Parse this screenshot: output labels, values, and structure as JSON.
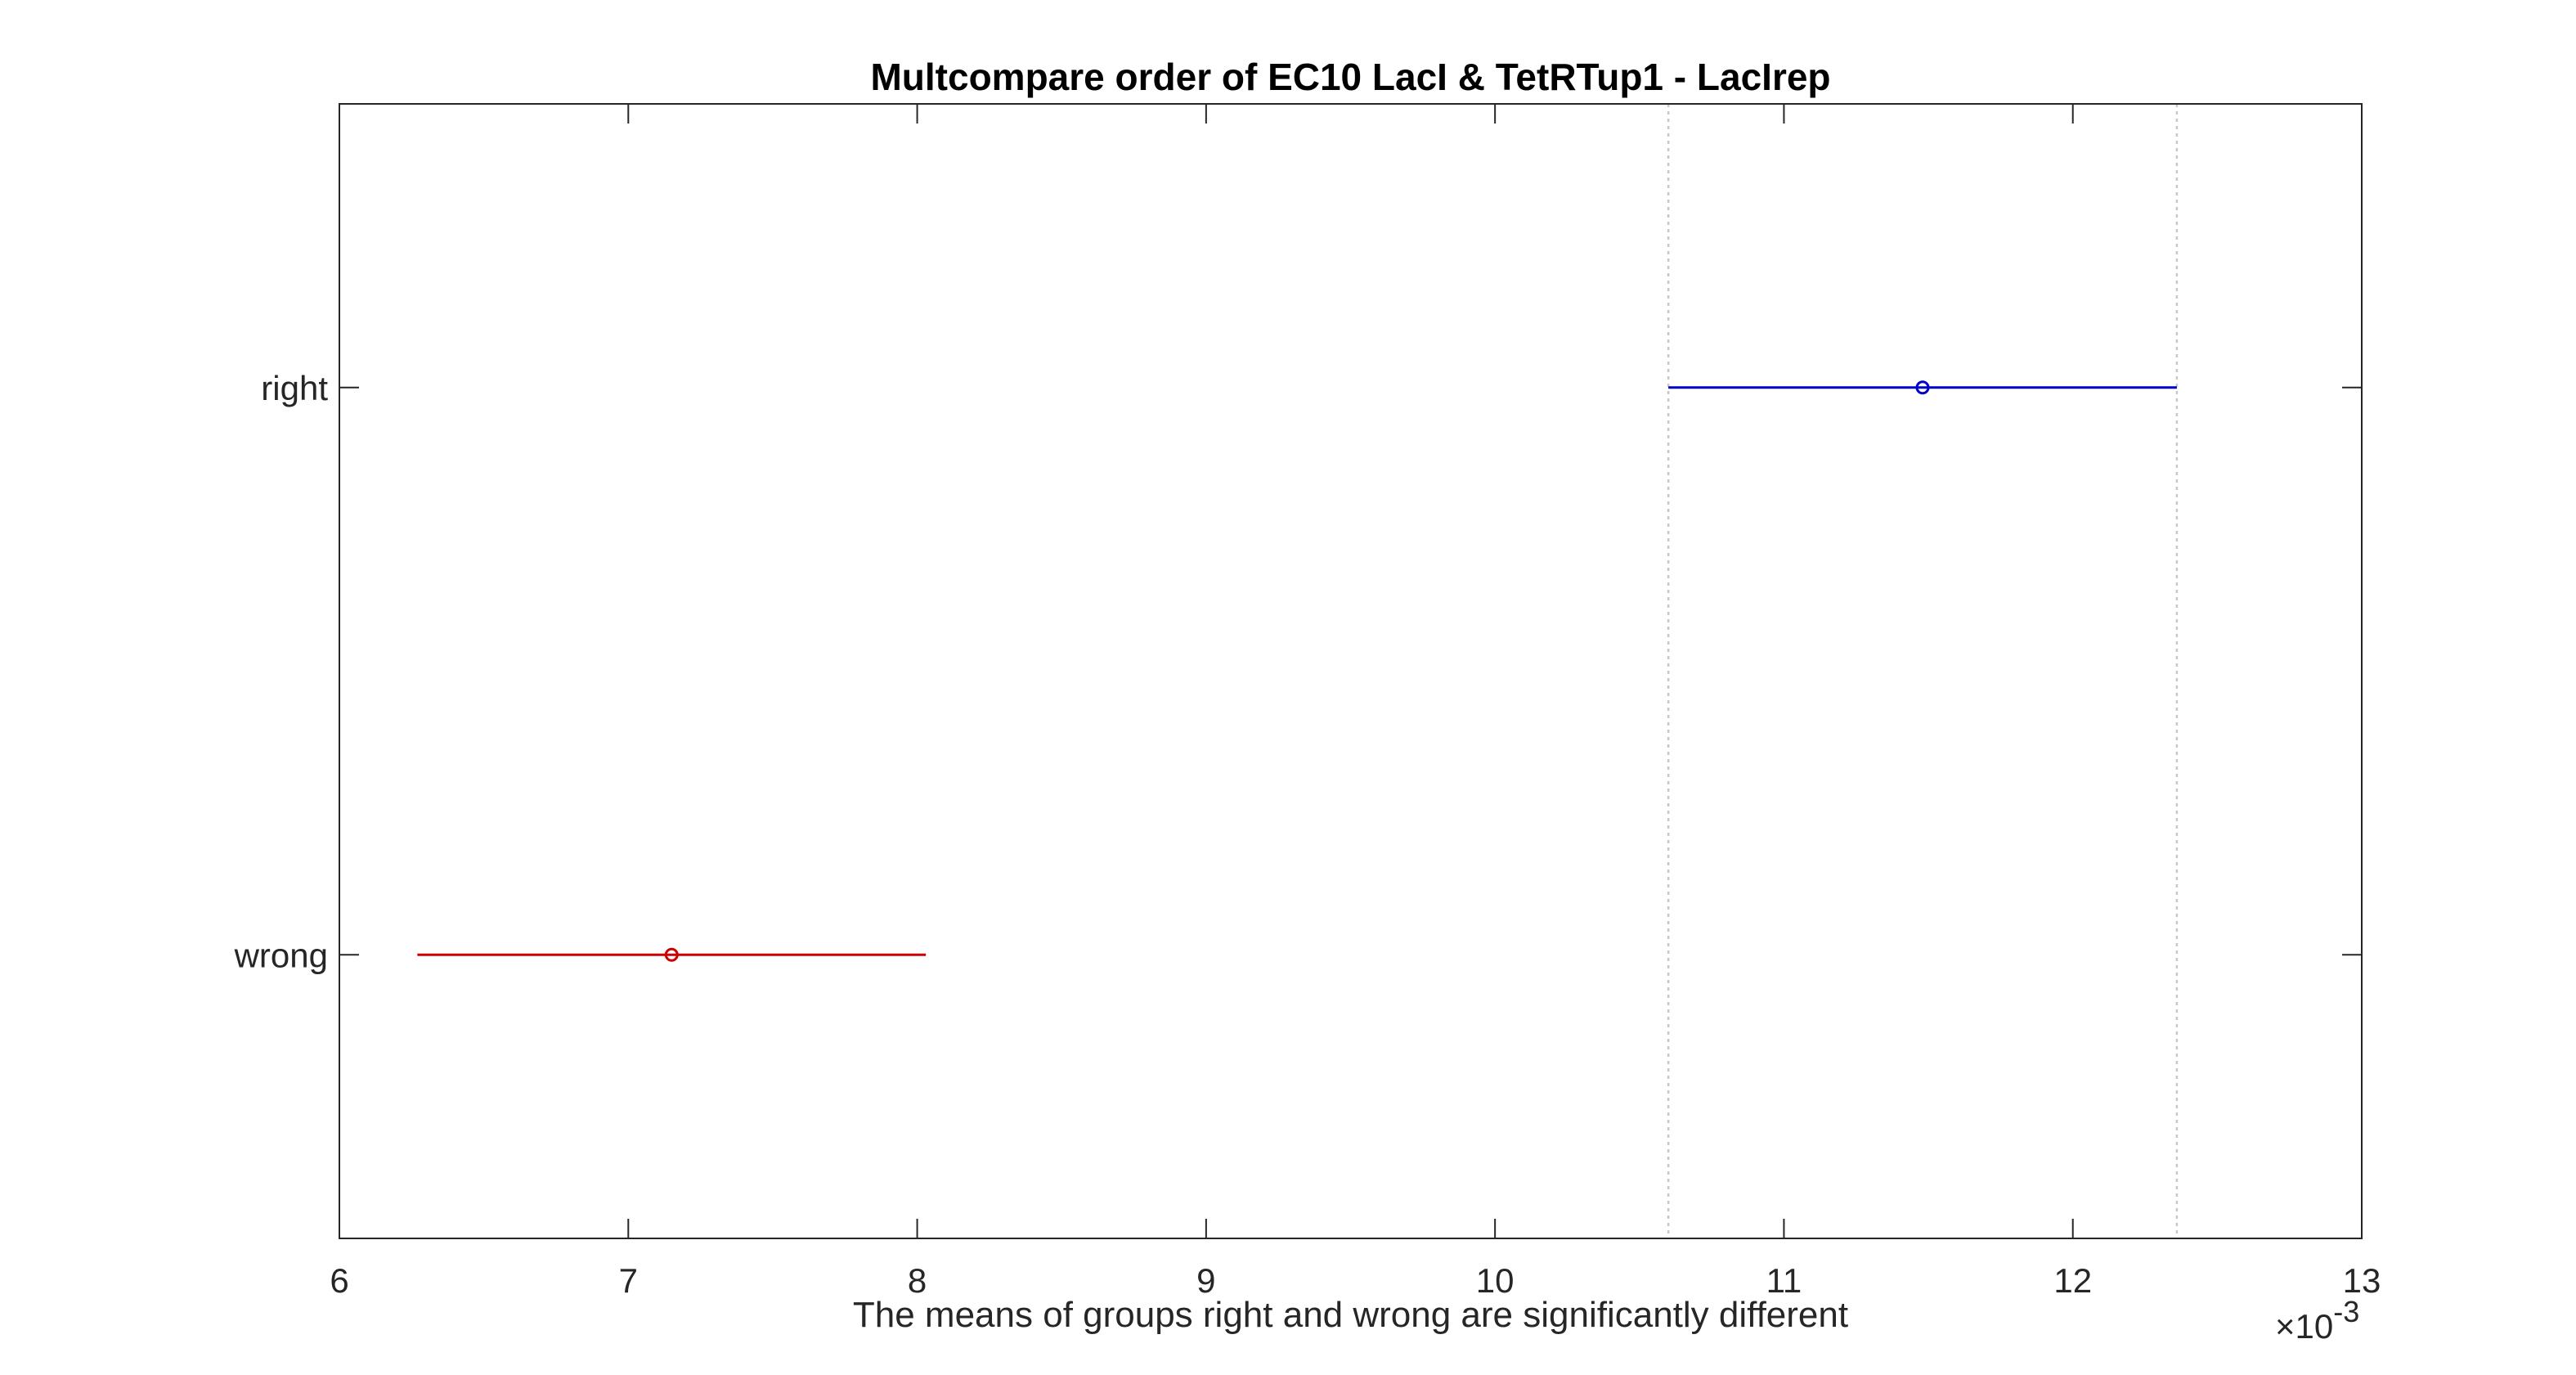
{
  "chart_data": {
    "type": "scatter",
    "title": "Multcompare order of EC10 LacI & TetRTup1 - LacIrep",
    "xlabel": "The means of groups right and wrong are significantly different",
    "ylabel": "",
    "x_exponent_label": "×10",
    "x_exponent_power": "-3",
    "xlim": [
      6,
      13
    ],
    "x_ticks": [
      6,
      7,
      8,
      9,
      10,
      11,
      12,
      13
    ],
    "x_tick_labels": [
      "6",
      "7",
      "8",
      "9",
      "10",
      "11",
      "12",
      "13"
    ],
    "ylim": [
      0.5,
      2.5
    ],
    "grid": false,
    "legend": "none",
    "groups": [
      {
        "label": "right",
        "mean": 11.48,
        "lower": 10.6,
        "upper": 12.36,
        "color": "#0000cc"
      },
      {
        "label": "wrong",
        "mean": 7.15,
        "lower": 6.27,
        "upper": 8.03,
        "color": "#cc0000"
      }
    ],
    "reference_lines": [
      10.6,
      12.36
    ],
    "reference_line_color": "#c8c8c8",
    "axis_color": "#262626"
  }
}
